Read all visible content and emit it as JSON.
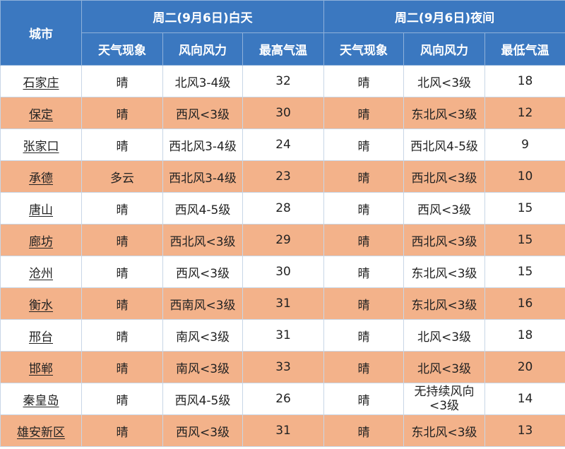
{
  "header": {
    "city": "城市",
    "day_title": "周二(9月6日)白天",
    "night_title": "周二(9月6日)夜间",
    "columns": {
      "day_weather": "天气现象",
      "day_wind": "风向风力",
      "high_temp": "最高气温",
      "night_weather": "天气现象",
      "night_wind": "风向风力",
      "low_temp": "最低气温"
    }
  },
  "colors": {
    "header_bg": "#3b78c0",
    "row_alt_bg": "#f3b28a",
    "row_bg": "#ffffff"
  },
  "rows": [
    {
      "city": "石家庄",
      "day_weather": "晴",
      "day_wind": "北风3-4级",
      "high": "32",
      "night_weather": "晴",
      "night_wind": "北风<3级",
      "low": "18"
    },
    {
      "city": "保定",
      "day_weather": "晴",
      "day_wind": "西风<3级",
      "high": "30",
      "night_weather": "晴",
      "night_wind": "东北风<3级",
      "low": "12"
    },
    {
      "city": "张家口",
      "day_weather": "晴",
      "day_wind": "西北风3-4级",
      "high": "24",
      "night_weather": "晴",
      "night_wind": "西北风4-5级",
      "low": "9"
    },
    {
      "city": "承德",
      "day_weather": "多云",
      "day_wind": "西北风3-4级",
      "high": "23",
      "night_weather": "晴",
      "night_wind": "西北风<3级",
      "low": "10"
    },
    {
      "city": "唐山",
      "day_weather": "晴",
      "day_wind": "西风4-5级",
      "high": "28",
      "night_weather": "晴",
      "night_wind": "西风<3级",
      "low": "15"
    },
    {
      "city": "廊坊",
      "day_weather": "晴",
      "day_wind": "西北风<3级",
      "high": "29",
      "night_weather": "晴",
      "night_wind": "西北风<3级",
      "low": "15"
    },
    {
      "city": "沧州",
      "day_weather": "晴",
      "day_wind": "西风<3级",
      "high": "30",
      "night_weather": "晴",
      "night_wind": "东北风<3级",
      "low": "15"
    },
    {
      "city": "衡水",
      "day_weather": "晴",
      "day_wind": "西南风<3级",
      "high": "31",
      "night_weather": "晴",
      "night_wind": "东北风<3级",
      "low": "16"
    },
    {
      "city": "邢台",
      "day_weather": "晴",
      "day_wind": "南风<3级",
      "high": "31",
      "night_weather": "晴",
      "night_wind": "北风<3级",
      "low": "18"
    },
    {
      "city": "邯郸",
      "day_weather": "晴",
      "day_wind": "南风<3级",
      "high": "33",
      "night_weather": "晴",
      "night_wind": "北风<3级",
      "low": "20"
    },
    {
      "city": "秦皇岛",
      "day_weather": "晴",
      "day_wind": "西风4-5级",
      "high": "26",
      "night_weather": "晴",
      "night_wind_l1": "无持续风向",
      "night_wind_l2": "<3级",
      "low": "14"
    },
    {
      "city": "雄安新区",
      "day_weather": "晴",
      "day_wind": "西风<3级",
      "high": "31",
      "night_weather": "晴",
      "night_wind": "东北风<3级",
      "low": "13"
    }
  ]
}
